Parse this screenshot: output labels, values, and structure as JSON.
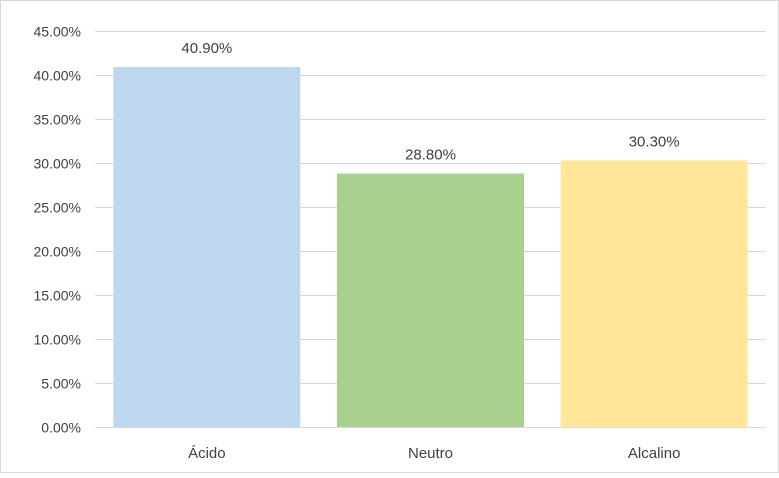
{
  "chart_data": {
    "type": "bar",
    "categories": [
      "Ácido",
      "Neutro",
      "Alcalino"
    ],
    "values": [
      40.9,
      28.8,
      30.3
    ],
    "data_labels": [
      "40.90%",
      "28.80%",
      "30.30%"
    ],
    "colors": [
      "#bdd7ee",
      "#a9d18e",
      "#ffe699"
    ],
    "ylim": [
      0,
      45
    ],
    "yticks": [
      0,
      5,
      10,
      15,
      20,
      25,
      30,
      35,
      40,
      45
    ],
    "ytick_labels": [
      "0.00%",
      "5.00%",
      "10.00%",
      "15.00%",
      "20.00%",
      "25.00%",
      "30.00%",
      "35.00%",
      "40.00%",
      "45.00%"
    ],
    "grid": true,
    "title": "",
    "xlabel": "",
    "ylabel": ""
  }
}
